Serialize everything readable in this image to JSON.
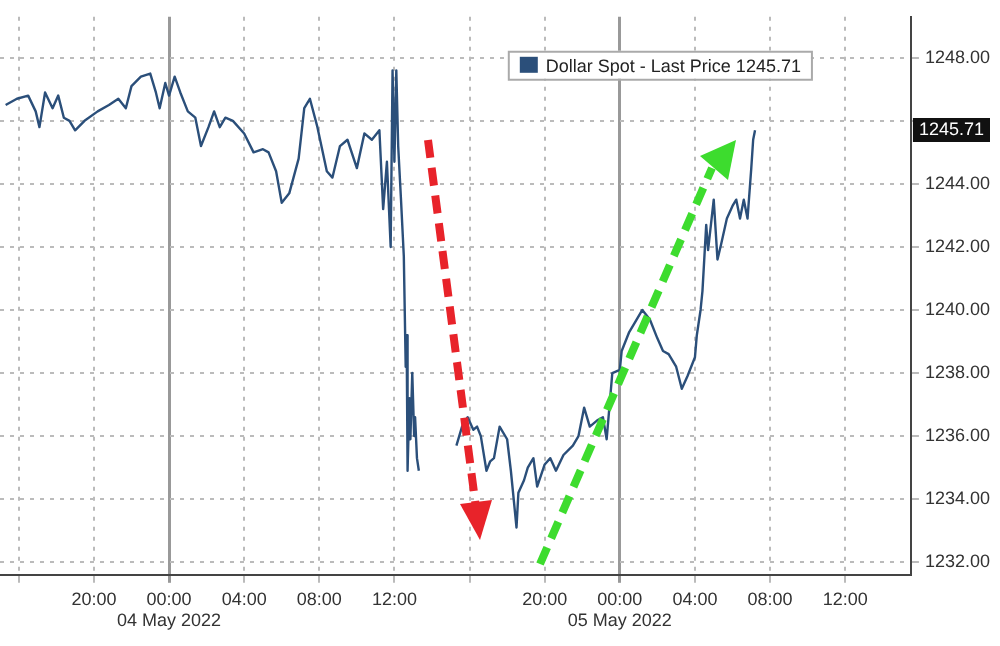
{
  "chart_data": {
    "type": "line",
    "legend": "top right",
    "grid": true,
    "line_style": "solid",
    "marker": "none",
    "xlim": [
      "2022-05-03T15:00",
      "2022-05-05T15:30"
    ],
    "xticks": [
      {
        "value": "2022-05-03T16:00",
        "label": null
      },
      {
        "value": "2022-05-03T20:00",
        "label": "20:00"
      },
      {
        "value": "2022-05-04T00:00",
        "label": "00:00\n04 May 2022"
      },
      {
        "value": "2022-05-04T04:00",
        "label": "04:00"
      },
      {
        "value": "2022-05-04T08:00",
        "label": "08:00"
      },
      {
        "value": "2022-05-04T12:00",
        "label": "12:00"
      },
      {
        "value": "2022-05-04T16:00",
        "label": null
      },
      {
        "value": "2022-05-04T20:00",
        "label": "20:00"
      },
      {
        "value": "2022-05-05T00:00",
        "label": "00:00\n05 May 2022"
      },
      {
        "value": "2022-05-05T04:00",
        "label": "04:00"
      },
      {
        "value": "2022-05-05T08:00",
        "label": "08:00"
      },
      {
        "value": "2022-05-05T12:00",
        "label": "12:00"
      }
    ],
    "ylim": [
      1231.6,
      1249.3
    ],
    "yticks": [
      {
        "value": 1232,
        "label": "1232.00"
      },
      {
        "value": 1234,
        "label": "1234.00"
      },
      {
        "value": 1236,
        "label": "1236.00"
      },
      {
        "value": 1238,
        "label": "1238.00"
      },
      {
        "value": 1240,
        "label": "1240.00"
      },
      {
        "value": 1242,
        "label": "1242.00"
      },
      {
        "value": 1244,
        "label": "1244.00"
      },
      {
        "value": 1246,
        "label": null
      },
      {
        "value": 1248,
        "label": "1248.00"
      }
    ],
    "annotations": [
      {
        "text": "1245.71",
        "y": 1245.71
      }
    ],
    "series": [
      {
        "name": "Dollar Spot - Last Price 1245.71",
        "color": "#2b4f7a",
        "x": [
          "2022-05-03T15:18",
          "2022-05-03T15:54",
          "2022-05-03T16:30",
          "2022-05-03T16:54",
          "2022-05-03T17:06",
          "2022-05-03T17:24",
          "2022-05-03T17:48",
          "2022-05-03T18:06",
          "2022-05-03T18:24",
          "2022-05-03T18:42",
          "2022-05-03T19:00",
          "2022-05-03T19:30",
          "2022-05-03T20:12",
          "2022-05-03T20:48",
          "2022-05-03T21:18",
          "2022-05-03T21:42",
          "2022-05-03T22:00",
          "2022-05-03T22:30",
          "2022-05-03T23:00",
          "2022-05-03T23:18",
          "2022-05-03T23:30",
          "2022-05-03T23:48",
          "2022-05-04T00:00",
          "2022-05-04T00:18",
          "2022-05-04T00:36",
          "2022-05-04T01:00",
          "2022-05-04T01:24",
          "2022-05-04T01:42",
          "2022-05-04T02:06",
          "2022-05-04T02:24",
          "2022-05-04T02:42",
          "2022-05-04T03:00",
          "2022-05-04T03:24",
          "2022-05-04T04:00",
          "2022-05-04T04:30",
          "2022-05-04T05:00",
          "2022-05-04T05:18",
          "2022-05-04T05:42",
          "2022-05-04T06:00",
          "2022-05-04T06:24",
          "2022-05-04T06:54",
          "2022-05-04T07:12",
          "2022-05-04T07:30",
          "2022-05-04T07:54",
          "2022-05-04T08:24",
          "2022-05-04T08:42",
          "2022-05-04T09:06",
          "2022-05-04T09:30",
          "2022-05-04T10:00",
          "2022-05-04T10:24",
          "2022-05-04T10:48",
          "2022-05-04T11:12",
          "2022-05-04T11:24",
          "2022-05-04T11:36",
          "2022-05-04T11:48",
          "2022-05-04T11:54",
          "2022-05-04T12:00",
          "2022-05-04T12:06",
          "2022-05-04T12:12",
          "2022-05-04T12:21",
          "2022-05-04T12:30",
          "2022-05-04T12:36",
          "2022-05-04T12:39",
          "2022-05-04T12:42",
          "2022-05-04T12:48",
          "2022-05-04T12:51",
          "2022-05-04T12:57",
          "2022-05-04T13:03",
          "2022-05-04T13:06",
          "2022-05-04T13:12",
          "2022-05-04T13:18",
          "2022-05-04T14:00",
          "2022-05-04T15:18",
          "2022-05-04T15:36",
          "2022-05-04T15:54",
          "2022-05-04T16:12",
          "2022-05-04T16:24",
          "2022-05-04T16:36",
          "2022-05-04T16:54",
          "2022-05-04T17:06",
          "2022-05-04T17:18",
          "2022-05-04T17:36",
          "2022-05-04T18:00",
          "2022-05-04T18:12",
          "2022-05-04T18:30",
          "2022-05-04T18:36",
          "2022-05-04T18:54",
          "2022-05-04T19:06",
          "2022-05-04T19:24",
          "2022-05-04T19:36",
          "2022-05-04T20:00",
          "2022-05-04T20:18",
          "2022-05-04T20:36",
          "2022-05-04T21:00",
          "2022-05-04T21:30",
          "2022-05-04T21:48",
          "2022-05-04T22:06",
          "2022-05-04T22:24",
          "2022-05-04T22:48",
          "2022-05-04T23:06",
          "2022-05-04T23:18",
          "2022-05-04T23:36",
          "2022-05-05T00:00",
          "2022-05-05T00:06",
          "2022-05-05T00:30",
          "2022-05-05T00:48",
          "2022-05-05T01:12",
          "2022-05-05T01:36",
          "2022-05-05T02:00",
          "2022-05-05T02:18",
          "2022-05-05T02:36",
          "2022-05-05T03:00",
          "2022-05-05T03:18",
          "2022-05-05T03:36",
          "2022-05-05T04:00",
          "2022-05-05T04:06",
          "2022-05-05T04:18",
          "2022-05-05T04:24",
          "2022-05-05T04:36",
          "2022-05-05T04:42",
          "2022-05-05T05:00",
          "2022-05-05T05:12",
          "2022-05-05T05:24",
          "2022-05-05T05:42",
          "2022-05-05T06:00",
          "2022-05-05T06:12",
          "2022-05-05T06:24",
          "2022-05-05T06:36",
          "2022-05-05T06:48",
          "2022-05-05T07:00",
          "2022-05-05T07:06",
          "2022-05-05T07:12"
        ],
        "values": [
          1246.5,
          1246.7,
          1246.8,
          1246.3,
          1245.8,
          1246.9,
          1246.4,
          1246.8,
          1246.1,
          1246.0,
          1245.7,
          1246.0,
          1246.3,
          1246.5,
          1246.7,
          1246.4,
          1247.1,
          1247.4,
          1247.5,
          1246.9,
          1246.4,
          1247.2,
          1246.8,
          1247.4,
          1246.9,
          1246.3,
          1246.1,
          1245.2,
          1245.8,
          1246.3,
          1245.8,
          1246.1,
          1246.0,
          1245.6,
          1245.0,
          1245.1,
          1245.0,
          1244.4,
          1243.4,
          1243.7,
          1244.8,
          1246.4,
          1246.7,
          1245.8,
          1244.4,
          1244.2,
          1245.2,
          1245.4,
          1244.5,
          1245.6,
          1245.4,
          1245.7,
          1243.2,
          1244.7,
          1242.0,
          1247.6,
          1244.7,
          1247.6,
          1245.2,
          1243.5,
          1241.7,
          1238.2,
          1239.2,
          1234.9,
          1237.2,
          1235.9,
          1238.0,
          1236.0,
          1236.6,
          1235.3,
          1234.9,
          null,
          1235.7,
          1236.3,
          1236.6,
          1236.2,
          1236.3,
          1236.0,
          1234.9,
          1235.2,
          1235.3,
          1236.3,
          1235.9,
          1234.9,
          1233.1,
          1234.2,
          1234.6,
          1235.0,
          1235.3,
          1234.4,
          1235.1,
          1235.3,
          1234.9,
          1235.4,
          1235.7,
          1236.0,
          1236.9,
          1236.3,
          1236.5,
          1236.6,
          1235.9,
          1238.0,
          1238.1,
          1238.7,
          1239.3,
          1239.6,
          1240.0,
          1239.7,
          1239.1,
          1238.7,
          1238.6,
          1238.2,
          1237.5,
          1237.9,
          1238.5,
          1239.2,
          1240.0,
          1240.6,
          1242.7,
          1241.9,
          1243.5,
          1241.6,
          1242.1,
          1242.9,
          1243.3,
          1243.5,
          1242.9,
          1243.5,
          1242.9,
          1244.5,
          1245.4,
          1245.7
        ]
      }
    ]
  }
}
